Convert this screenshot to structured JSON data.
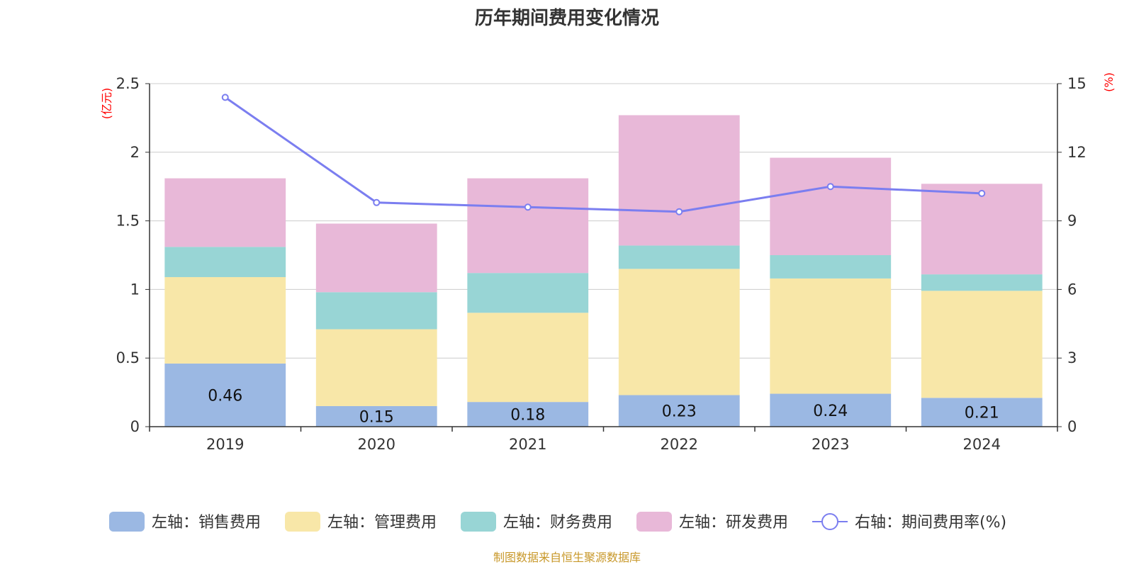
{
  "colors": {
    "sales": "#9bb8e3",
    "admin": "#f8e7a8",
    "finance": "#98d5d5",
    "rd": "#e8b8d8",
    "rate_line": "#7b7ef0",
    "axis_unit": "#ff0000",
    "source": "#c8982a"
  },
  "chart_data": {
    "type": "bar",
    "stacked": true,
    "title": "历年期间费用变化情况",
    "categories": [
      "2019",
      "2020",
      "2021",
      "2022",
      "2023",
      "2024"
    ],
    "left_axis": {
      "unit": "(亿元)",
      "ylim": [
        0,
        2.5
      ],
      "ticks": [
        "0",
        "0.5",
        "1",
        "1.5",
        "2",
        "2.5"
      ]
    },
    "right_axis": {
      "unit": "(%)",
      "ylim": [
        0,
        15
      ],
      "ticks": [
        "0",
        "3",
        "6",
        "9",
        "12",
        "15"
      ]
    },
    "series": [
      {
        "key": "sales",
        "name": "左轴：销售费用",
        "axis": "left",
        "type": "bar",
        "values": [
          0.46,
          0.15,
          0.18,
          0.23,
          0.24,
          0.21
        ],
        "show_labels": true,
        "labels": [
          "0.46",
          "0.15",
          "0.18",
          "0.23",
          "0.24",
          "0.21"
        ]
      },
      {
        "key": "admin",
        "name": "左轴：管理费用",
        "axis": "left",
        "type": "bar",
        "values": [
          0.63,
          0.56,
          0.65,
          0.92,
          0.84,
          0.78
        ]
      },
      {
        "key": "finance",
        "name": "左轴：财务费用",
        "axis": "left",
        "type": "bar",
        "values": [
          0.22,
          0.27,
          0.29,
          0.17,
          0.17,
          0.12
        ]
      },
      {
        "key": "rd",
        "name": "左轴：研发费用",
        "axis": "left",
        "type": "bar",
        "values": [
          0.5,
          0.5,
          0.69,
          0.95,
          0.71,
          0.66
        ]
      },
      {
        "key": "rate",
        "name": "右轴：期间费用率(%)",
        "axis": "right",
        "type": "line",
        "values": [
          14.4,
          9.8,
          9.6,
          9.4,
          10.5,
          10.2
        ]
      }
    ],
    "source_note": "制图数据来自恒生聚源数据库"
  }
}
